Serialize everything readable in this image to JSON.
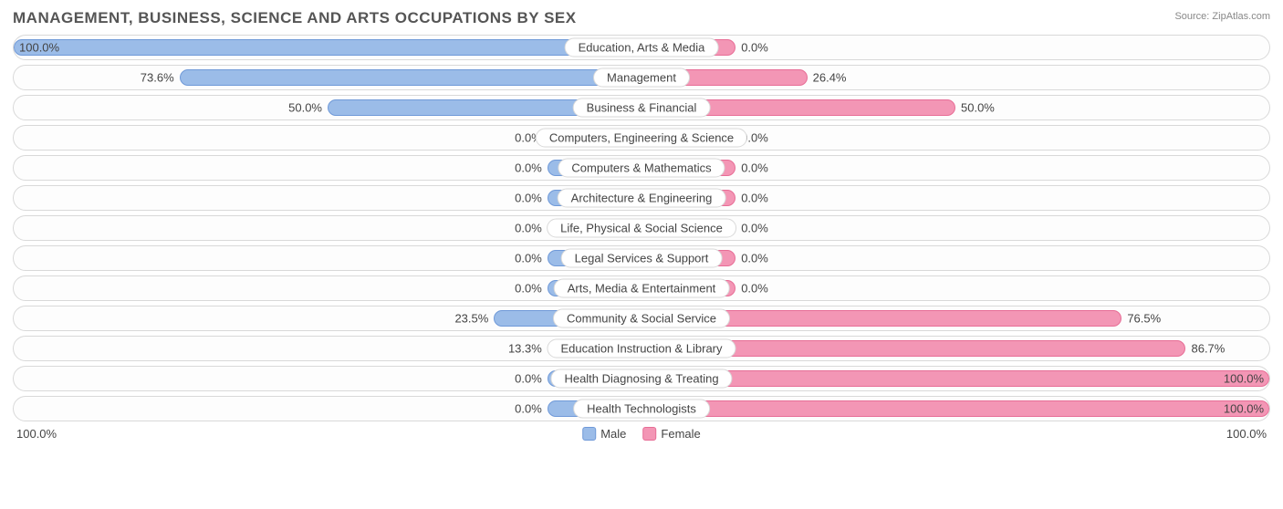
{
  "chart": {
    "title": "MANAGEMENT, BUSINESS, SCIENCE AND ARTS OCCUPATIONS BY SEX",
    "source_label": "Source:",
    "source_name": "ZipAtlas.com",
    "type": "diverging-bar",
    "colors": {
      "male_fill": "#9bbce8",
      "male_border": "#6f99d8",
      "female_fill": "#f396b5",
      "female_border": "#e76d96",
      "row_border": "#d9d9d9",
      "text": "#444444",
      "title_text": "#555555",
      "background": "#ffffff"
    },
    "min_bar_pct": 15,
    "axis": {
      "left": "100.0%",
      "right": "100.0%"
    },
    "legend": {
      "male": "Male",
      "female": "Female"
    },
    "rows": [
      {
        "label": "Education, Arts & Media",
        "male": 100.0,
        "female": 0.0
      },
      {
        "label": "Management",
        "male": 73.6,
        "female": 26.4
      },
      {
        "label": "Business & Financial",
        "male": 50.0,
        "female": 50.0
      },
      {
        "label": "Computers, Engineering & Science",
        "male": 0.0,
        "female": 0.0
      },
      {
        "label": "Computers & Mathematics",
        "male": 0.0,
        "female": 0.0
      },
      {
        "label": "Architecture & Engineering",
        "male": 0.0,
        "female": 0.0
      },
      {
        "label": "Life, Physical & Social Science",
        "male": 0.0,
        "female": 0.0
      },
      {
        "label": "Legal Services & Support",
        "male": 0.0,
        "female": 0.0
      },
      {
        "label": "Arts, Media & Entertainment",
        "male": 0.0,
        "female": 0.0
      },
      {
        "label": "Community & Social Service",
        "male": 23.5,
        "female": 76.5
      },
      {
        "label": "Education Instruction & Library",
        "male": 13.3,
        "female": 86.7
      },
      {
        "label": "Health Diagnosing & Treating",
        "male": 0.0,
        "female": 100.0
      },
      {
        "label": "Health Technologists",
        "male": 0.0,
        "female": 100.0
      }
    ]
  }
}
